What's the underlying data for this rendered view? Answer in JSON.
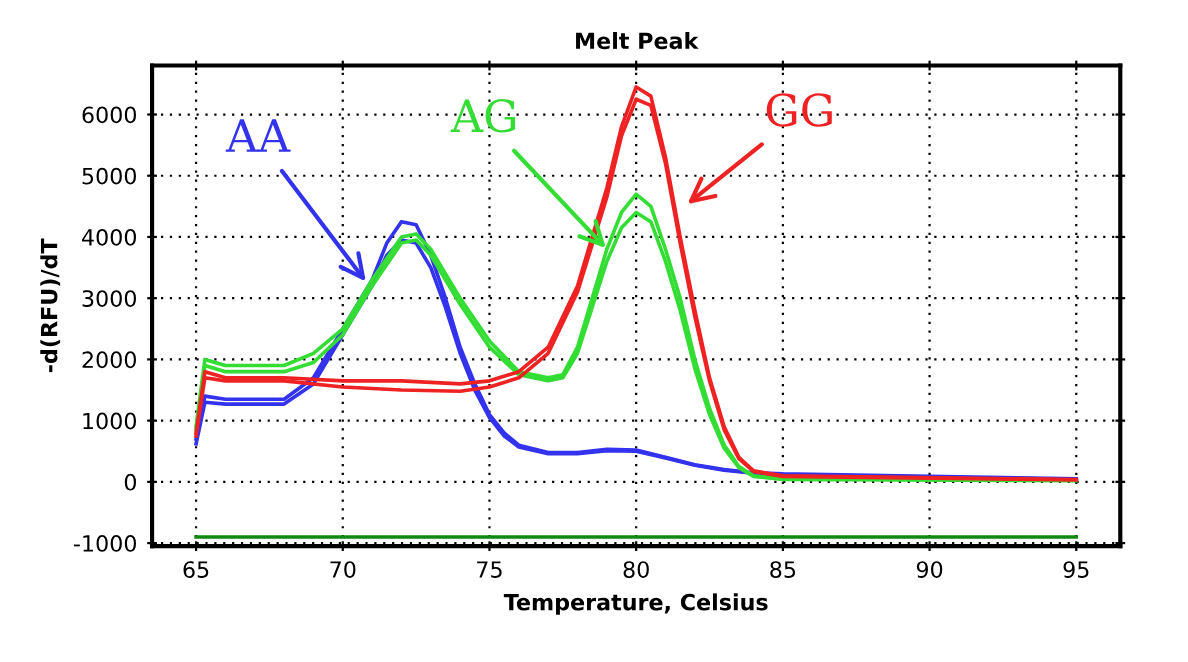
{
  "chart_data": {
    "type": "line",
    "title": "Melt Peak",
    "xlabel": "Temperature, Celsius",
    "ylabel": "-d(RFU)/dT",
    "xlim": [
      63.5,
      96.5
    ],
    "xticks": [
      65,
      70,
      75,
      80,
      85,
      90,
      95
    ],
    "ylim": [
      -1050,
      6800
    ],
    "yticks": [
      -1000,
      0,
      1000,
      2000,
      3000,
      4000,
      5000,
      6000
    ],
    "grid": true,
    "line_style": "solid",
    "marker": "none",
    "series": [
      {
        "color": "#3333ee",
        "x": [
          65,
          65.3,
          66,
          68,
          69,
          70,
          71,
          71.5,
          72,
          72.5,
          73,
          73.5,
          74,
          74.5,
          75,
          75.5,
          76,
          77,
          78,
          79,
          80,
          81,
          82,
          83,
          84,
          85,
          90,
          95
        ],
        "values": [
          700,
          1400,
          1350,
          1350,
          1700,
          2500,
          3300,
          3900,
          4250,
          4200,
          3700,
          3000,
          2200,
          1600,
          1100,
          800,
          600,
          480,
          480,
          530,
          520,
          400,
          280,
          200,
          150,
          130,
          90,
          50
        ]
      },
      {
        "color": "#3333ee",
        "x": [
          65,
          65.3,
          66,
          68,
          69,
          70,
          71,
          71.5,
          72,
          72.5,
          73,
          73.5,
          74,
          74.5,
          75,
          75.5,
          76,
          77,
          78,
          79,
          80,
          81,
          82,
          83,
          84,
          85,
          90,
          95
        ],
        "values": [
          620,
          1300,
          1270,
          1270,
          1600,
          2400,
          3200,
          3700,
          3950,
          3900,
          3500,
          2850,
          2100,
          1500,
          1050,
          750,
          570,
          460,
          460,
          510,
          500,
          390,
          270,
          190,
          140,
          120,
          80,
          40
        ]
      },
      {
        "color": "#33dd33",
        "x": [
          65,
          65.3,
          66,
          68,
          69,
          70,
          71,
          72,
          72.5,
          73,
          74,
          75,
          76,
          77,
          77.5,
          78,
          78.5,
          79,
          79.5,
          80,
          80.5,
          81,
          81.5,
          82,
          82.5,
          83,
          83.5,
          84,
          85,
          95
        ],
        "values": [
          900,
          2000,
          1900,
          1900,
          2100,
          2500,
          3300,
          4000,
          4050,
          3800,
          3000,
          2300,
          1800,
          1700,
          1750,
          2200,
          3000,
          3800,
          4400,
          4700,
          4500,
          3800,
          3000,
          2000,
          1200,
          600,
          250,
          100,
          50,
          30
        ]
      },
      {
        "color": "#33dd33",
        "x": [
          65,
          65.3,
          66,
          68,
          69,
          70,
          71,
          72,
          72.5,
          73,
          74,
          75,
          76,
          77,
          77.5,
          78,
          78.5,
          79,
          79.5,
          80,
          80.5,
          81,
          81.5,
          82,
          82.5,
          83,
          83.5,
          84,
          85,
          95
        ],
        "values": [
          850,
          1900,
          1800,
          1800,
          1950,
          2400,
          3200,
          3900,
          3950,
          3700,
          2900,
          2200,
          1750,
          1650,
          1700,
          2100,
          2850,
          3600,
          4150,
          4400,
          4250,
          3600,
          2800,
          1850,
          1100,
          550,
          230,
          90,
          40,
          20
        ]
      },
      {
        "color": "#ee2222",
        "x": [
          65,
          65.3,
          66,
          68,
          70,
          72,
          74,
          75,
          76,
          77,
          78,
          79,
          79.5,
          80,
          80.5,
          81,
          81.5,
          82,
          82.5,
          83,
          83.5,
          84,
          85,
          95
        ],
        "values": [
          800,
          1800,
          1700,
          1700,
          1650,
          1650,
          1600,
          1650,
          1800,
          2200,
          3200,
          4800,
          5800,
          6450,
          6300,
          5300,
          4000,
          2800,
          1700,
          900,
          400,
          180,
          100,
          40
        ]
      },
      {
        "color": "#ee2222",
        "x": [
          65,
          65.3,
          66,
          68,
          70,
          72,
          74,
          75,
          76,
          77,
          78,
          79,
          79.5,
          80,
          80.5,
          81,
          81.5,
          82,
          82.5,
          83,
          83.5,
          84,
          85,
          95
        ],
        "values": [
          750,
          1700,
          1650,
          1650,
          1550,
          1500,
          1480,
          1550,
          1700,
          2100,
          3100,
          4650,
          5650,
          6250,
          6150,
          5200,
          3900,
          2700,
          1650,
          850,
          380,
          170,
          90,
          30
        ]
      },
      {
        "color": "#118811",
        "x": [
          65,
          95
        ],
        "values": [
          -900,
          -900
        ]
      }
    ],
    "annotations": [
      {
        "text": "AA",
        "x": 70.9,
        "y": 3200
      },
      {
        "text": "AG",
        "x": 79.1,
        "y": 3750
      },
      {
        "text": "GG",
        "x": 81.6,
        "y": 4480
      }
    ]
  }
}
